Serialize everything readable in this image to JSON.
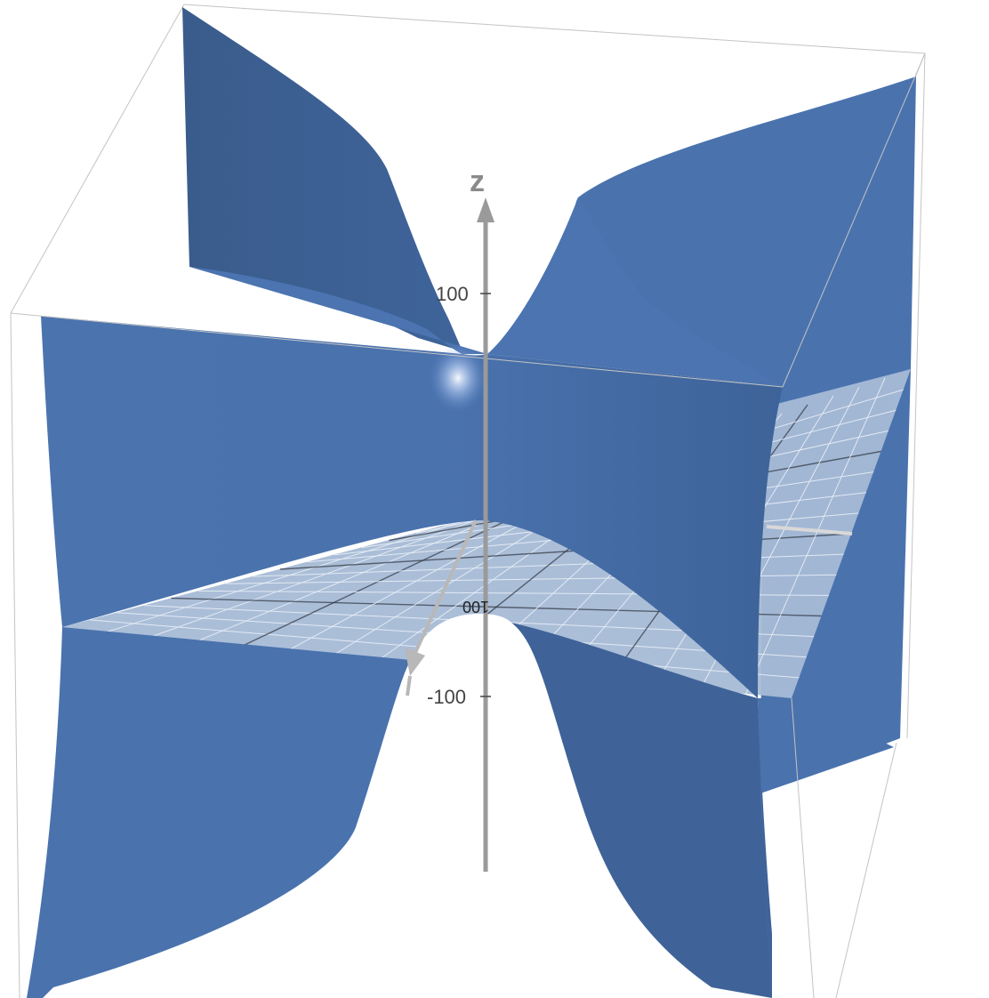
{
  "axes": {
    "z_label": "z",
    "tick_upper": "100",
    "tick_lower": "-100",
    "tick_plane": "100"
  },
  "colors": {
    "surface": "#4a72ad",
    "surface_shade": "#3b5f92",
    "surface_dark": "#35557f",
    "plane": "#a7bad6",
    "plane_grid": "#e8eef6",
    "plane_major": "#2d3440",
    "axis": "#9a9a9a",
    "box": "#c4c4c4"
  }
}
